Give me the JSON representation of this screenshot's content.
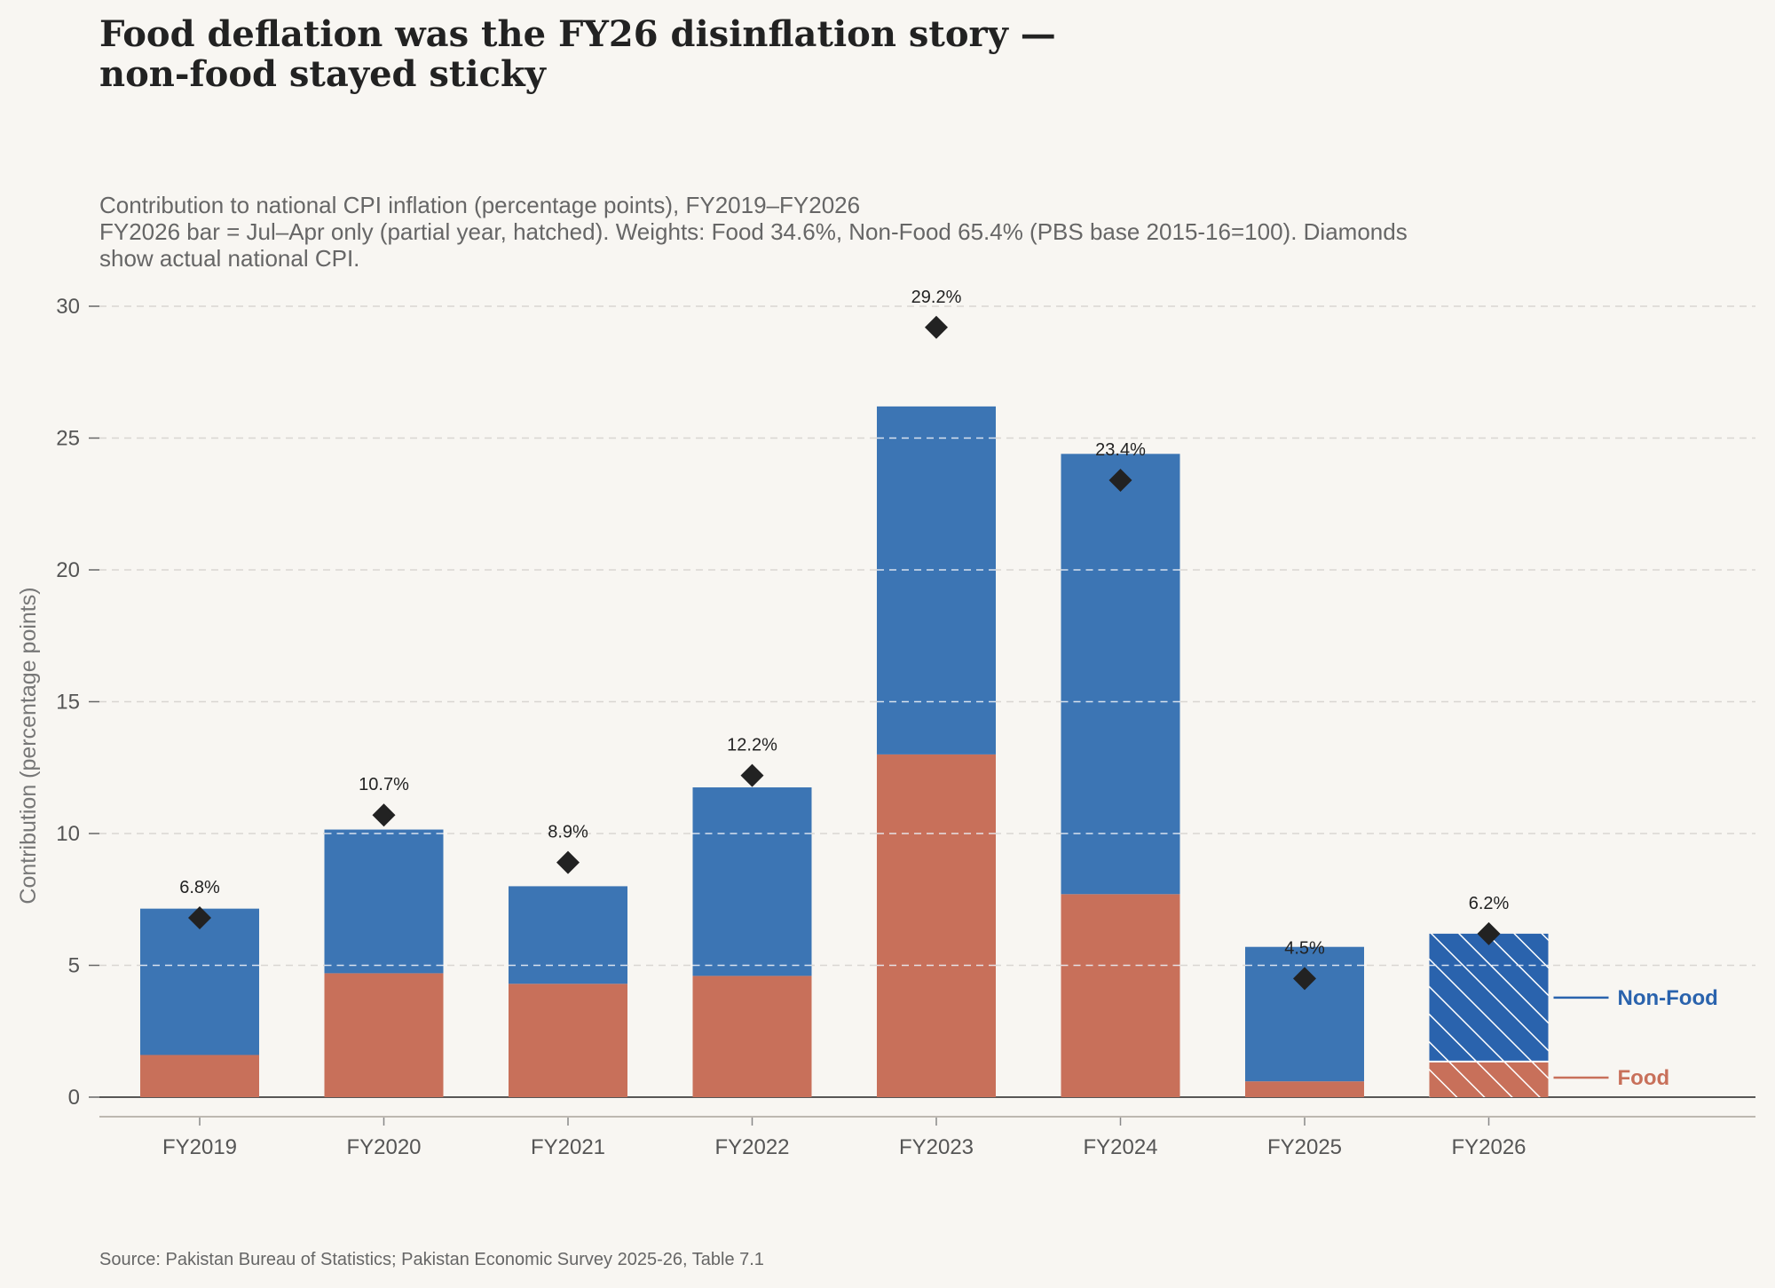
{
  "chart_data": {
    "type": "bar",
    "stacked": true,
    "title_lines": [
      "Food deflation was the FY26 disinflation story —",
      "non-food stayed sticky"
    ],
    "subtitle_lines": [
      "Contribution to national CPI inflation (percentage points), FY2019–FY2026",
      "FY2026 bar = Jul–Apr only (partial year, hatched). Weights: Food 34.6%, Non-Food 65.4% (PBS base 2015-16=100). Diamonds",
      "show actual national CPI."
    ],
    "ylabel": "Contribution (percentage points)",
    "xlabel": "",
    "ylim": [
      0,
      30
    ],
    "yticks": [
      0,
      5,
      10,
      15,
      20,
      25,
      30
    ],
    "grid": "horizontal-dashed",
    "categories": [
      "FY2019",
      "FY2020",
      "FY2021",
      "FY2022",
      "FY2023",
      "FY2024",
      "FY2025",
      "FY2026"
    ],
    "series": [
      {
        "name": "Food",
        "color": "#c8705a",
        "values": [
          1.6,
          4.7,
          4.3,
          4.6,
          13.0,
          7.7,
          0.6,
          1.35
        ]
      },
      {
        "name": "Non-Food",
        "color": "#3c75b4",
        "values": [
          5.55,
          5.45,
          3.7,
          7.15,
          13.2,
          16.7,
          5.1,
          4.85
        ]
      }
    ],
    "hatched_categories": [
      "FY2026"
    ],
    "markers": {
      "shape": "diamond",
      "color": "#222222",
      "values": [
        6.8,
        10.7,
        8.9,
        12.2,
        29.2,
        23.4,
        4.5,
        6.2
      ],
      "labels": [
        "6.8%",
        "10.7%",
        "8.9%",
        "12.2%",
        "29.2%",
        "23.4%",
        "4.5%",
        "6.2%"
      ]
    },
    "legend_placement": "right, inline labels next to FY2026 bar",
    "source": "Source: Pakistan Bureau of Statistics; Pakistan Economic Survey 2025-26, Table 7.1"
  }
}
